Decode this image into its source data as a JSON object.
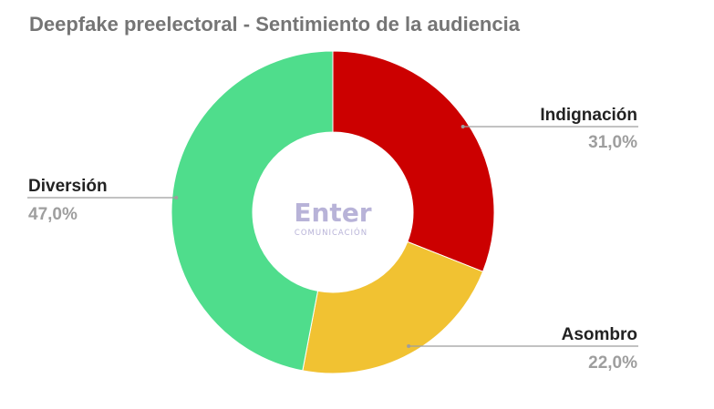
{
  "chart_data": {
    "type": "pie",
    "title": "Deepfake preelectoral - Sentimiento de la audiencia",
    "categories": [
      "Indignación",
      "Asombro",
      "Diversión"
    ],
    "values": [
      31.0,
      22.0,
      47.0
    ],
    "value_labels": [
      "31,0%",
      "22,0%",
      "47,0%"
    ],
    "colors": [
      "#cc0000",
      "#f1c232",
      "#4fdd8c"
    ],
    "donut": true,
    "legend": "none"
  },
  "watermark": {
    "main": "Enter",
    "sub": "COMUNICACIÓN",
    "color": "#b8b3d8"
  }
}
